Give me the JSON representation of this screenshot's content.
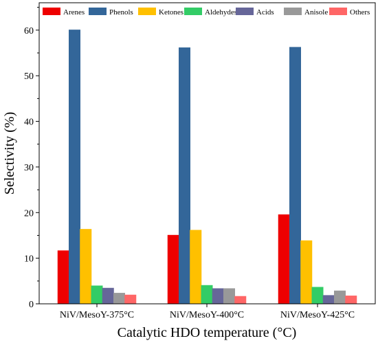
{
  "chart_data": {
    "type": "bar",
    "title": "",
    "xlabel": "Catalytic HDO temperature (°C)",
    "ylabel": "Selectivity (%)",
    "ylim": [
      0,
      66
    ],
    "yticks": [
      0,
      10,
      20,
      30,
      40,
      50,
      60
    ],
    "grid": false,
    "legend_position": "top",
    "categories": [
      "NiV/MesoY-375°C",
      "NiV/MesoY-400°C",
      "NiV/MesoY-425°C"
    ],
    "series": [
      {
        "name": "Arenes",
        "color": "#ee0000",
        "values": [
          11.7,
          15.1,
          19.6
        ]
      },
      {
        "name": "Phenols",
        "color": "#336699",
        "values": [
          60.1,
          56.2,
          56.3
        ]
      },
      {
        "name": "Ketones",
        "color": "#ffc000",
        "values": [
          16.4,
          16.2,
          13.9
        ]
      },
      {
        "name": "Aldehydes",
        "color": "#33cc66",
        "values": [
          4.0,
          4.1,
          3.7
        ]
      },
      {
        "name": "Acids",
        "color": "#666699",
        "values": [
          3.5,
          3.4,
          1.9
        ]
      },
      {
        "name": "Anisole",
        "color": "#999999",
        "values": [
          2.4,
          3.4,
          2.9
        ]
      },
      {
        "name": "Others",
        "color": "#ff6666",
        "values": [
          2.0,
          1.7,
          1.8
        ]
      }
    ]
  }
}
